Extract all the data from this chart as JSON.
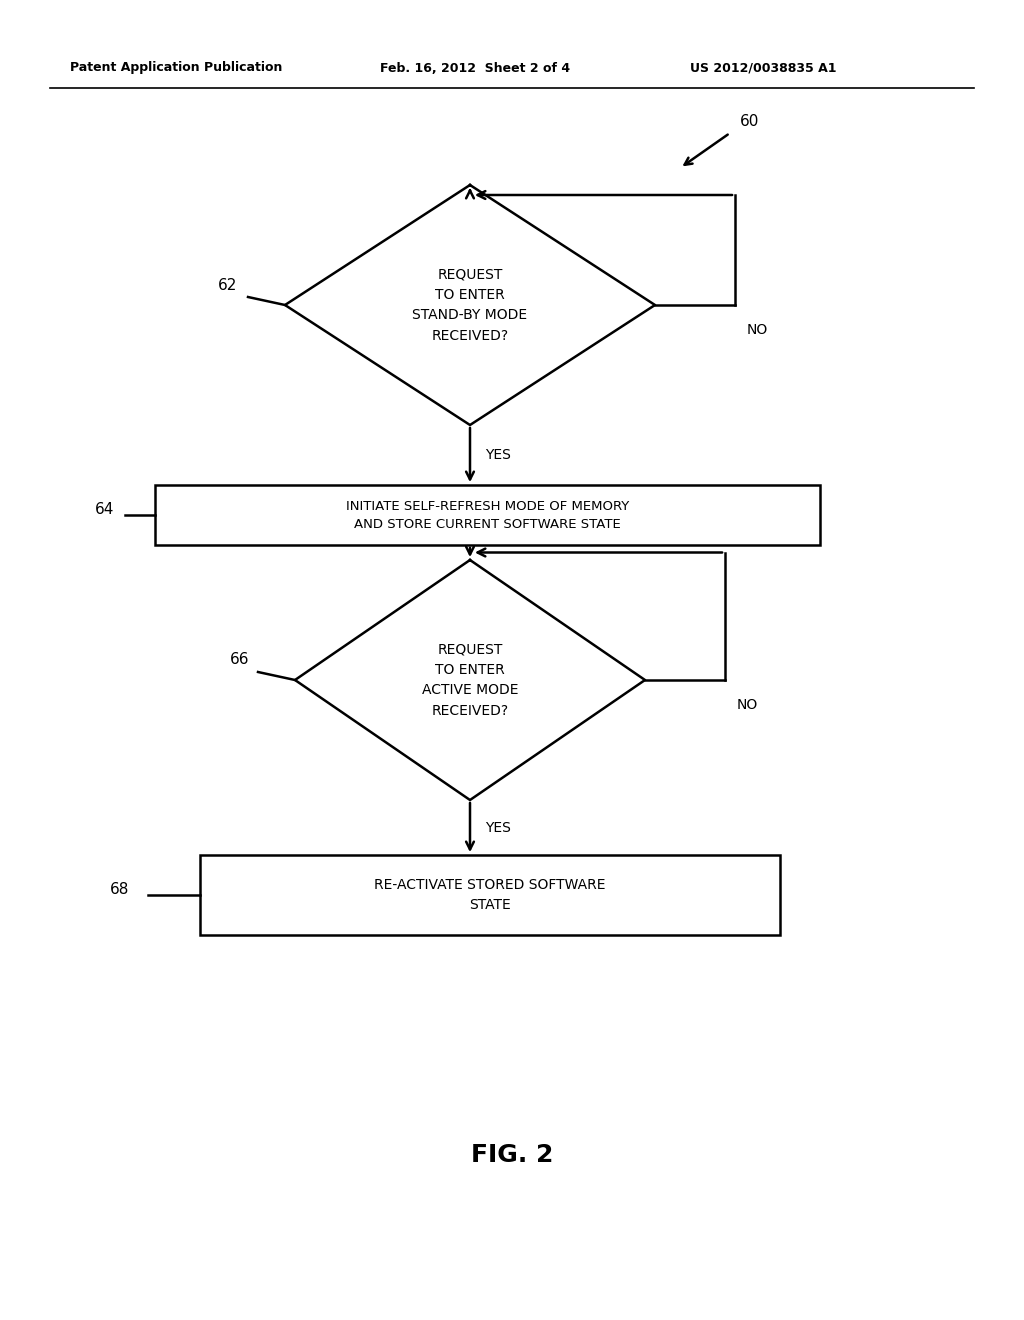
{
  "bg_color": "#ffffff",
  "header_left": "Patent Application Publication",
  "header_mid": "Feb. 16, 2012  Sheet 2 of 4",
  "header_right": "US 2012/0038835 A1",
  "fig_label": "FIG. 2",
  "ref_60": "60",
  "ref_62": "62",
  "ref_64": "64",
  "ref_66": "66",
  "ref_68": "68",
  "diamond1_text": "REQUEST\nTO ENTER\nSTAND-BY MODE\nRECEIVED?",
  "rect1_text": "INITIATE SELF-REFRESH MODE OF MEMORY\nAND STORE CURRENT SOFTWARE STATE",
  "diamond2_text": "REQUEST\nTO ENTER\nACTIVE MODE\nRECEIVED?",
  "rect2_text": "RE-ACTIVATE STORED SOFTWARE\nSTATE",
  "yes_label": "YES",
  "no_label": "NO",
  "line_color": "#000000",
  "text_color": "#000000",
  "lw": 1.8,
  "header_fontsize": 9,
  "ref_fontsize": 11,
  "body_fontsize": 10,
  "fig_fontsize": 18
}
